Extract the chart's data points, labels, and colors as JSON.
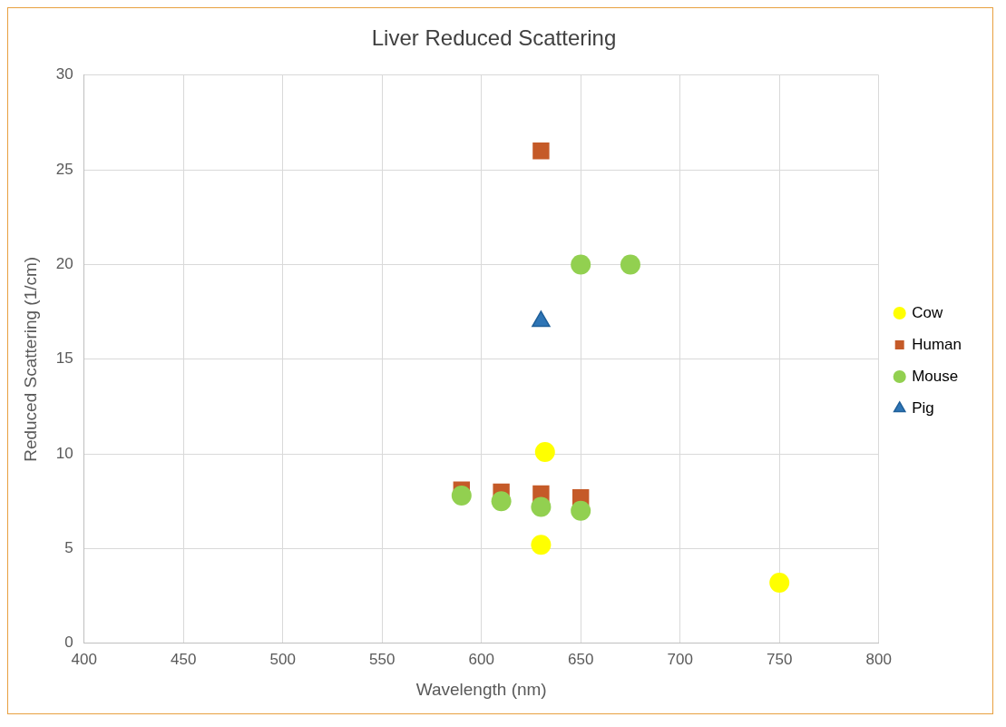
{
  "chart_data": {
    "type": "scatter",
    "title": "Liver Reduced Scattering",
    "xlabel": "Wavelength (nm)",
    "ylabel": "Reduced Scattering (1/cm)",
    "xlim": [
      400,
      800
    ],
    "xticks": [
      400,
      450,
      500,
      550,
      600,
      650,
      700,
      750,
      800
    ],
    "ylim": [
      0,
      30
    ],
    "yticks": [
      0,
      5,
      10,
      15,
      20,
      25,
      30
    ],
    "grid": true,
    "legend": "right",
    "series": [
      {
        "name": "Cow",
        "color": "#ffff00",
        "marker": "circle",
        "x": [
          632,
          630,
          750
        ],
        "values": [
          10.1,
          5.2,
          3.2
        ]
      },
      {
        "name": "Human",
        "color": "#c55a28",
        "marker": "square",
        "x": [
          630,
          590,
          610,
          630,
          650
        ],
        "values": [
          26,
          8.1,
          8,
          7.9,
          7.7
        ]
      },
      {
        "name": "Mouse",
        "color": "#92d050",
        "marker": "circle",
        "x": [
          650,
          675,
          590,
          610,
          630,
          650
        ],
        "values": [
          20,
          20,
          7.8,
          7.5,
          7.2,
          7
        ]
      },
      {
        "name": "Pig",
        "color": "#2e75b6",
        "marker": "triangle",
        "x": [
          630
        ],
        "values": [
          17
        ]
      }
    ]
  }
}
